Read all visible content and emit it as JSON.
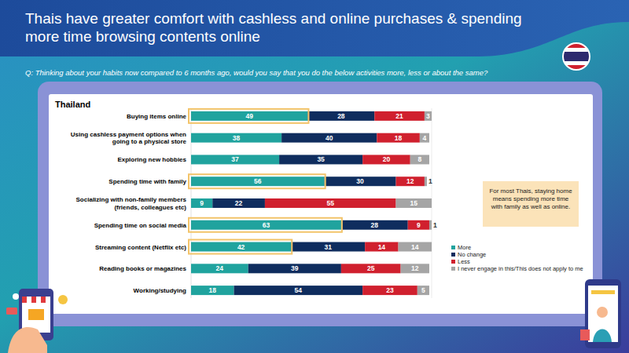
{
  "chart_data": {
    "type": "bar",
    "orientation": "horizontal",
    "stacked": true,
    "data_labels": true,
    "tick_labels": "y",
    "grid": false,
    "legend": "right",
    "title": "Thais have greater comfort with cashless and online purchases & spending more time browsing contents online",
    "subtitle": "Q: Thinking about your habits now compared to 6 months ago, would you say that you do the below activities more, less or about the same?",
    "panel_title": "Thailand",
    "annotations": [
      "For most Thais, staying home means spending more time with family as well as online."
    ],
    "categories": [
      "Buying items online",
      "Using cashless payment options when going to a physical store",
      "Exploring new hobbies",
      "Spending time with family",
      "Socializing with non-family members (friends, colleagues etc)",
      "Spending time on social media",
      "Streaming content (Netflix etc)",
      "Reading books or magazines",
      "Working/studying"
    ],
    "series": [
      {
        "name": "More",
        "color": "#20a39e",
        "values": [
          49,
          38,
          37,
          56,
          9,
          63,
          42,
          24,
          18
        ]
      },
      {
        "name": "No change",
        "color": "#0f2d5e",
        "values": [
          28,
          40,
          35,
          30,
          22,
          28,
          31,
          39,
          54
        ]
      },
      {
        "name": "Less",
        "color": "#d0202e",
        "values": [
          21,
          18,
          20,
          12,
          55,
          9,
          14,
          25,
          23
        ]
      },
      {
        "name": "I never engage in this/This does not apply to me",
        "color": "#a5a5a5",
        "values": [
          3,
          4,
          8,
          1,
          15,
          1,
          14,
          12,
          5
        ]
      }
    ],
    "xlim": [
      0,
      101
    ]
  }
}
